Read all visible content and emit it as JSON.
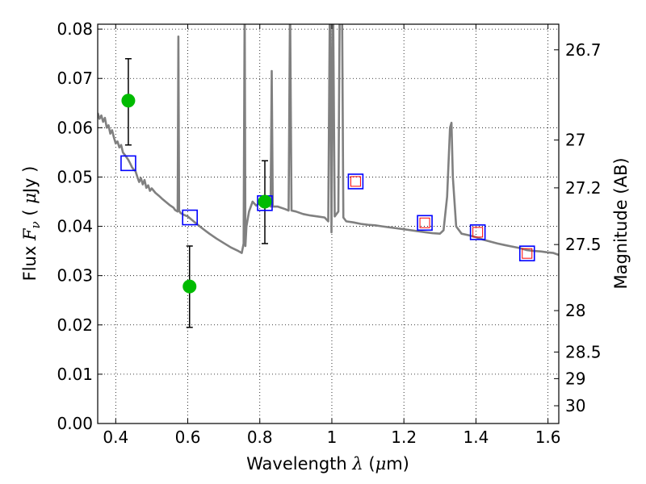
{
  "chart_data": {
    "type": "scatter",
    "xlabel": {
      "prefix": "Wavelength ",
      "sym": "λ",
      "unit_open": " (",
      "unit_mu": "μ",
      "unit_rest": "m)"
    },
    "ylabel": {
      "prefix": "Flux ",
      "sym": "F",
      "sub": "ν",
      "unit_open": " ( ",
      "unit_mu": "μ",
      "unit_rest": "Jy )"
    },
    "y2label": "Magnitude (AB)",
    "xlim": [
      0.35,
      1.63
    ],
    "ylim": [
      0.0,
      0.081
    ],
    "grid": true,
    "x_ticks": [
      0.4,
      0.6,
      0.8,
      1.0,
      1.2,
      1.4,
      1.6
    ],
    "x_tick_labels": [
      "0.4",
      "0.6",
      "0.8",
      "1",
      "1.2",
      "1.4",
      "1.6"
    ],
    "y_ticks": [
      0.0,
      0.01,
      0.02,
      0.03,
      0.04,
      0.05,
      0.06,
      0.07,
      0.08
    ],
    "y_tick_labels": [
      "0.00",
      "0.01",
      "0.02",
      "0.03",
      "0.04",
      "0.05",
      "0.06",
      "0.07",
      "0.08"
    ],
    "y2_ticks": [
      {
        "label": "26.7",
        "flux": 0.0758
      },
      {
        "label": "27",
        "flux": 0.0575
      },
      {
        "label": "27.2",
        "flux": 0.0478
      },
      {
        "label": "27.5",
        "flux": 0.0363
      },
      {
        "label": "28",
        "flux": 0.0229
      },
      {
        "label": "28.5",
        "flux": 0.0145
      },
      {
        "label": "29",
        "flux": 0.0091
      },
      {
        "label": "30",
        "flux": 0.0036
      }
    ],
    "model_spectrum": {
      "color": "#808080",
      "points": [
        [
          0.35,
          0.063
        ],
        [
          0.355,
          0.0618
        ],
        [
          0.36,
          0.0625
        ],
        [
          0.365,
          0.0612
        ],
        [
          0.37,
          0.062
        ],
        [
          0.375,
          0.06
        ],
        [
          0.38,
          0.0605
        ],
        [
          0.385,
          0.0588
        ],
        [
          0.39,
          0.0595
        ],
        [
          0.395,
          0.058
        ],
        [
          0.4,
          0.0568
        ],
        [
          0.405,
          0.0572
        ],
        [
          0.41,
          0.056
        ],
        [
          0.415,
          0.0565
        ],
        [
          0.42,
          0.055
        ],
        [
          0.425,
          0.0545
        ],
        [
          0.43,
          0.054
        ],
        [
          0.435,
          0.0535
        ],
        [
          0.44,
          0.0528
        ],
        [
          0.445,
          0.052
        ],
        [
          0.45,
          0.0515
        ],
        [
          0.455,
          0.0512
        ],
        [
          0.46,
          0.05
        ],
        [
          0.465,
          0.049
        ],
        [
          0.47,
          0.0498
        ],
        [
          0.475,
          0.0485
        ],
        [
          0.48,
          0.0494
        ],
        [
          0.485,
          0.0478
        ],
        [
          0.49,
          0.0483
        ],
        [
          0.495,
          0.0472
        ],
        [
          0.5,
          0.0477
        ],
        [
          0.51,
          0.0468
        ],
        [
          0.52,
          0.0462
        ],
        [
          0.53,
          0.0455
        ],
        [
          0.54,
          0.0449
        ],
        [
          0.55,
          0.0443
        ],
        [
          0.56,
          0.0438
        ],
        [
          0.565,
          0.0433
        ],
        [
          0.572,
          0.043
        ],
        [
          0.574,
          0.0785
        ],
        [
          0.576,
          0.0432
        ],
        [
          0.58,
          0.0427
        ],
        [
          0.59,
          0.0423
        ],
        [
          0.6,
          0.042
        ],
        [
          0.62,
          0.0408
        ],
        [
          0.64,
          0.0396
        ],
        [
          0.66,
          0.0385
        ],
        [
          0.68,
          0.0375
        ],
        [
          0.7,
          0.0366
        ],
        [
          0.72,
          0.0357
        ],
        [
          0.74,
          0.035
        ],
        [
          0.75,
          0.0346
        ],
        [
          0.755,
          0.0365
        ],
        [
          0.758,
          0.086
        ],
        [
          0.76,
          0.036
        ],
        [
          0.763,
          0.04
        ],
        [
          0.77,
          0.043
        ],
        [
          0.78,
          0.045
        ],
        [
          0.79,
          0.0442
        ],
        [
          0.8,
          0.0448
        ],
        [
          0.81,
          0.0445
        ],
        [
          0.82,
          0.0452
        ],
        [
          0.83,
          0.044
        ],
        [
          0.833,
          0.0715
        ],
        [
          0.836,
          0.044
        ],
        [
          0.85,
          0.044
        ],
        [
          0.87,
          0.0435
        ],
        [
          0.88,
          0.0432
        ],
        [
          0.884,
          0.086
        ],
        [
          0.888,
          0.0432
        ],
        [
          0.9,
          0.043
        ],
        [
          0.92,
          0.0425
        ],
        [
          0.94,
          0.0422
        ],
        [
          0.96,
          0.042
        ],
        [
          0.98,
          0.0418
        ],
        [
          0.99,
          0.041
        ],
        [
          0.995,
          0.09
        ],
        [
          0.999,
          0.0388
        ],
        [
          1.003,
          0.09
        ],
        [
          1.008,
          0.042
        ],
        [
          1.018,
          0.043
        ],
        [
          1.022,
          0.088
        ],
        [
          1.028,
          0.088
        ],
        [
          1.032,
          0.0418
        ],
        [
          1.04,
          0.041
        ],
        [
          1.06,
          0.0408
        ],
        [
          1.08,
          0.0405
        ],
        [
          1.1,
          0.0403
        ],
        [
          1.12,
          0.0402
        ],
        [
          1.14,
          0.04
        ],
        [
          1.16,
          0.0398
        ],
        [
          1.18,
          0.0396
        ],
        [
          1.2,
          0.0394
        ],
        [
          1.22,
          0.0392
        ],
        [
          1.24,
          0.039
        ],
        [
          1.26,
          0.0388
        ],
        [
          1.28,
          0.0386
        ],
        [
          1.3,
          0.0385
        ],
        [
          1.31,
          0.0392
        ],
        [
          1.32,
          0.046
        ],
        [
          1.328,
          0.06
        ],
        [
          1.332,
          0.061
        ],
        [
          1.336,
          0.05
        ],
        [
          1.345,
          0.04
        ],
        [
          1.36,
          0.0385
        ],
        [
          1.38,
          0.0382
        ],
        [
          1.4,
          0.0378
        ],
        [
          1.42,
          0.0373
        ],
        [
          1.44,
          0.0369
        ],
        [
          1.46,
          0.0365
        ],
        [
          1.48,
          0.0362
        ],
        [
          1.5,
          0.0359
        ],
        [
          1.52,
          0.0356
        ],
        [
          1.54,
          0.0352
        ],
        [
          1.56,
          0.035
        ],
        [
          1.58,
          0.0349
        ],
        [
          1.6,
          0.0347
        ],
        [
          1.615,
          0.0346
        ],
        [
          1.63,
          0.0342
        ]
      ]
    },
    "observed_points": {
      "color": "#00bb00",
      "errorbar_color": "#000000",
      "points": [
        {
          "x": 0.435,
          "y": 0.0655,
          "yerr_low": 0.0565,
          "yerr_high": 0.074
        },
        {
          "x": 0.605,
          "y": 0.0278,
          "yerr_low": 0.0195,
          "yerr_high": 0.036
        },
        {
          "x": 0.814,
          "y": 0.045,
          "yerr_low": 0.0365,
          "yerr_high": 0.0533
        }
      ]
    },
    "model_bandpass_points": {
      "color": "#0000ff",
      "points": [
        {
          "x": 0.435,
          "y": 0.0528
        },
        {
          "x": 0.606,
          "y": 0.0418
        },
        {
          "x": 0.814,
          "y": 0.0447
        },
        {
          "x": 1.066,
          "y": 0.0491
        },
        {
          "x": 1.258,
          "y": 0.0407
        },
        {
          "x": 1.405,
          "y": 0.0388
        },
        {
          "x": 1.542,
          "y": 0.0345
        }
      ]
    },
    "inner_markers": {
      "color": "#ff0000",
      "points": [
        {
          "x": 1.066,
          "y": 0.0491
        },
        {
          "x": 1.258,
          "y": 0.0407
        },
        {
          "x": 1.405,
          "y": 0.0388
        },
        {
          "x": 1.542,
          "y": 0.0345
        }
      ]
    }
  }
}
